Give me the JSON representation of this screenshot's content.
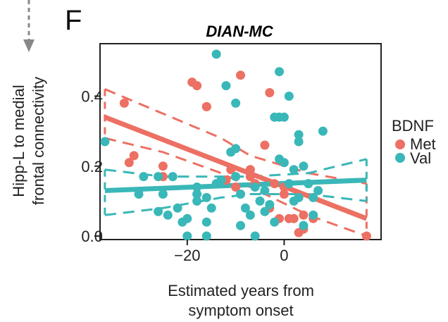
{
  "panel_label": "F",
  "chart_data": {
    "type": "scatter",
    "title": "DIAN-MC",
    "xlabel_lines": [
      "Estimated years from",
      "symptom onset"
    ],
    "ylabel_lines": [
      "Hipp-L to medial",
      "frontal connectivity"
    ],
    "xlim": [
      -38,
      20
    ],
    "ylim": [
      -0.01,
      0.55
    ],
    "xticks": [
      -20,
      0
    ],
    "xtick_labels": [
      "−20",
      "0"
    ],
    "yticks": [
      0.0,
      0.2,
      0.4
    ],
    "ytick_labels": [
      "0.0",
      "0.2",
      "0.4"
    ],
    "legend": {
      "title": "BDNF",
      "placement": "right"
    },
    "series": [
      {
        "name": "Met",
        "color": "#ec7063",
        "points": [
          [
            -33,
            0.38
          ],
          [
            -32,
            0.21
          ],
          [
            -31,
            0.23
          ],
          [
            -25,
            0.2
          ],
          [
            -25,
            0.17
          ],
          [
            -19,
            0.44
          ],
          [
            -18,
            0.43
          ],
          [
            -16,
            0.37
          ],
          [
            -16,
            0.37
          ],
          [
            -12,
            0.16
          ],
          [
            -12,
            0.16
          ],
          [
            -11,
            0.19
          ],
          [
            -10,
            0.14
          ],
          [
            -9,
            0.46
          ],
          [
            -7,
            0.19
          ],
          [
            -7,
            0.19
          ],
          [
            -7,
            0.17
          ],
          [
            -6,
            0.15
          ],
          [
            -4,
            0.26
          ],
          [
            -3,
            0.41
          ],
          [
            -3,
            0.08
          ],
          [
            -2,
            0.15
          ],
          [
            -1,
            0.05
          ],
          [
            0,
            0.12
          ],
          [
            0,
            0.14
          ],
          [
            1,
            0.05
          ],
          [
            2,
            0.05
          ],
          [
            3,
            0.01
          ],
          [
            4,
            0.02
          ],
          [
            4,
            0.06
          ],
          [
            6,
            0.05
          ],
          [
            17,
            0.0
          ]
        ],
        "fit": {
          "x": [
            -37,
            17
          ],
          "y": [
            0.34,
            0.05
          ]
        },
        "ci_upper": {
          "x": [
            -37,
            -25,
            -13,
            -7,
            5,
            17
          ],
          "y": [
            0.42,
            0.35,
            0.28,
            0.23,
            0.18,
            0.15
          ]
        },
        "ci_lower": {
          "x": [
            -37,
            -25,
            -13,
            -7,
            5,
            17
          ],
          "y": [
            0.28,
            0.24,
            0.18,
            0.14,
            0.06,
            0.0
          ]
        }
      },
      {
        "name": "Val",
        "color": "#3ab7b8",
        "points": [
          [
            -37,
            0.27
          ],
          [
            -30,
            0.12
          ],
          [
            -29,
            0.17
          ],
          [
            -26,
            0.17
          ],
          [
            -26,
            0.07
          ],
          [
            -25,
            0.12
          ],
          [
            -24,
            0.06
          ],
          [
            -23,
            0.17
          ],
          [
            -22,
            0.08
          ],
          [
            -21,
            0.04
          ],
          [
            -20,
            0.05
          ],
          [
            -20,
            0.0
          ],
          [
            -18,
            0.14
          ],
          [
            -18,
            0.12
          ],
          [
            -18,
            0.1
          ],
          [
            -16,
            0.0
          ],
          [
            -16,
            0.11
          ],
          [
            -16,
            0.04
          ],
          [
            -15,
            0.08
          ],
          [
            -14,
            0.15
          ],
          [
            -13,
            0.16
          ],
          [
            -12,
            0.43
          ],
          [
            -11,
            0.24
          ],
          [
            -10,
            0.38
          ],
          [
            -10,
            0.25
          ],
          [
            -10,
            0.17
          ],
          [
            -9,
            0.12
          ],
          [
            -9,
            0.03
          ],
          [
            -8,
            0.08
          ],
          [
            -7,
            0.06
          ],
          [
            -6,
            0.14
          ],
          [
            -6,
            0.0
          ],
          [
            -5,
            0.1
          ],
          [
            -4,
            0.13
          ],
          [
            -4,
            0.07
          ],
          [
            -3,
            0.09
          ],
          [
            -2,
            0.04
          ],
          [
            -2,
            0.34
          ],
          [
            -1,
            0.34
          ],
          [
            -1,
            0.22
          ],
          [
            0,
            0.34
          ],
          [
            0,
            0.21
          ],
          [
            1,
            0.15
          ],
          [
            2,
            0.19
          ],
          [
            2,
            0.1
          ],
          [
            3,
            0.29
          ],
          [
            3,
            0.27
          ],
          [
            3,
            0.11
          ],
          [
            4,
            0.03
          ],
          [
            4,
            0.2
          ],
          [
            5,
            0.15
          ],
          [
            6,
            0.06
          ],
          [
            6,
            0.11
          ],
          [
            7,
            0.13
          ],
          [
            8,
            0.3
          ],
          [
            -14,
            0.52
          ],
          [
            -1,
            0.47
          ],
          [
            1,
            0.4
          ],
          [
            5,
            0.15
          ]
        ],
        "fit": {
          "x": [
            -37,
            17
          ],
          "y": [
            0.13,
            0.16
          ]
        },
        "ci_upper": {
          "x": [
            -37,
            -25,
            -13,
            -7,
            5,
            17
          ],
          "y": [
            0.19,
            0.17,
            0.17,
            0.17,
            0.18,
            0.22
          ]
        },
        "ci_lower": {
          "x": [
            -37,
            -25,
            -13,
            -7,
            5,
            17
          ],
          "y": [
            0.06,
            0.08,
            0.11,
            0.12,
            0.12,
            0.1
          ]
        }
      }
    ]
  }
}
